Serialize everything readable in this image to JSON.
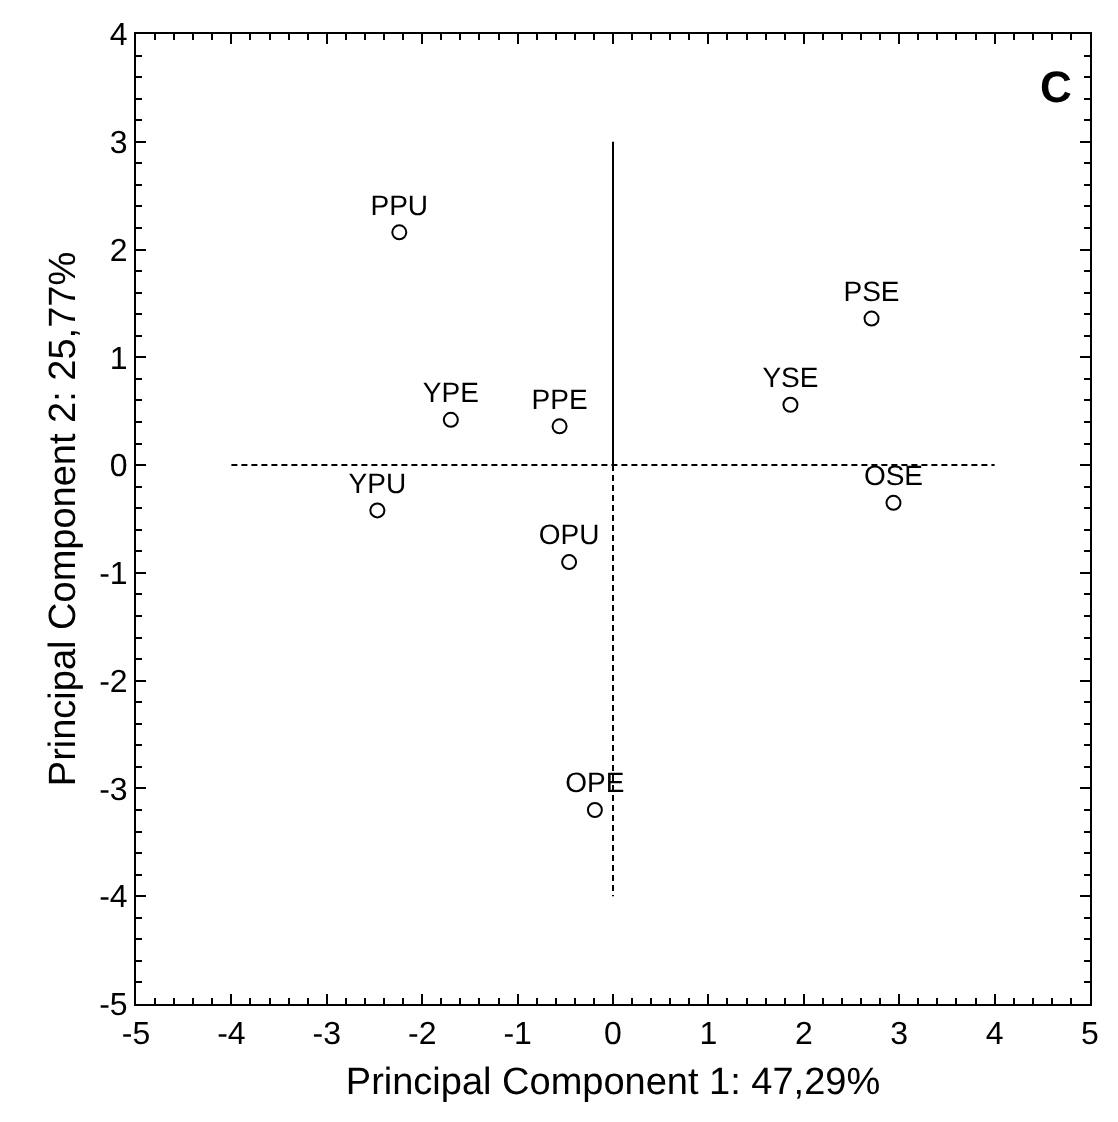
{
  "chart_data": {
    "type": "scatter",
    "xlabel": "Principal Component 1: 47,29%",
    "ylabel": "Principal Component 2: 25,77%",
    "annotations": [
      "C"
    ],
    "xlim": [
      -5,
      5
    ],
    "xticks": [
      -5,
      -4,
      -3,
      -2,
      -1,
      0,
      1,
      2,
      3,
      4,
      5
    ],
    "ylim": [
      -5,
      4
    ],
    "yticks": [
      -5,
      -4,
      -3,
      -2,
      -1,
      0,
      1,
      2,
      3,
      4
    ],
    "series": [
      {
        "marker": "circle",
        "color": "#000000",
        "x": [
          -2.24,
          -1.7,
          -0.56,
          -2.47,
          -0.46,
          -0.19,
          2.71,
          1.86,
          2.94
        ],
        "values": [
          2.16,
          0.42,
          0.36,
          -0.42,
          -0.9,
          -3.2,
          1.36,
          0.56,
          -0.35
        ],
        "value_labels": [
          "PPU",
          "YPE",
          "PPE",
          "YPU",
          "OPU",
          "OPE",
          "PSE",
          "YSE",
          "OSE"
        ]
      },
      {
        "type": "line",
        "color": "#000000",
        "line_style": "dashed",
        "x": [
          -4,
          4
        ],
        "values": [
          0,
          0
        ]
      },
      {
        "type": "line",
        "color": "#000000",
        "line_style": "solid",
        "x": [
          0,
          0
        ],
        "values": [
          3,
          0
        ]
      },
      {
        "type": "line",
        "color": "#000000",
        "line_style": "dashed",
        "x": [
          0,
          0
        ],
        "values": [
          0,
          -4
        ]
      }
    ]
  }
}
